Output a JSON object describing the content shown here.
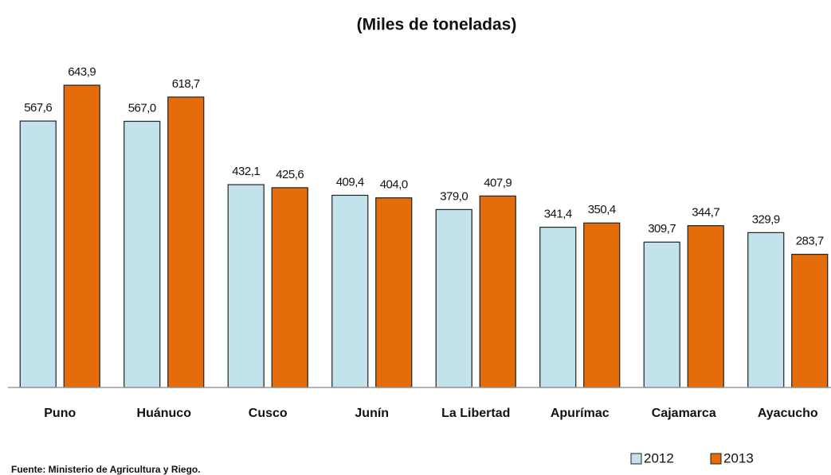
{
  "chart_data": {
    "type": "bar",
    "title": "(Miles de toneladas)",
    "categories": [
      "Puno",
      "Huánuco",
      "Cusco",
      "Junín",
      "La Libertad",
      "Apurímac",
      "Cajamarca",
      "Ayacucho"
    ],
    "series": [
      {
        "name": "2012",
        "color": "#c3e3ec",
        "values": [
          567.6,
          567.0,
          432.1,
          409.4,
          379.0,
          341.4,
          309.7,
          329.9
        ],
        "value_labels": [
          "567,6",
          "567,0",
          "432,1",
          "409,4",
          "379,0",
          "341,4",
          "309,7",
          "329,9"
        ]
      },
      {
        "name": "2013",
        "color": "#e46c0a",
        "values": [
          643.9,
          618.7,
          425.6,
          404.0,
          407.9,
          350.4,
          344.7,
          283.7
        ],
        "value_labels": [
          "643,9",
          "618,7",
          "425,6",
          "404,0",
          "407,9",
          "350,4",
          "344,7",
          "283,7"
        ]
      }
    ],
    "ylim": [
      0,
      700
    ],
    "legend": "bottom-right",
    "source": "Fuente: Ministerio de Agricultura y Riego."
  }
}
